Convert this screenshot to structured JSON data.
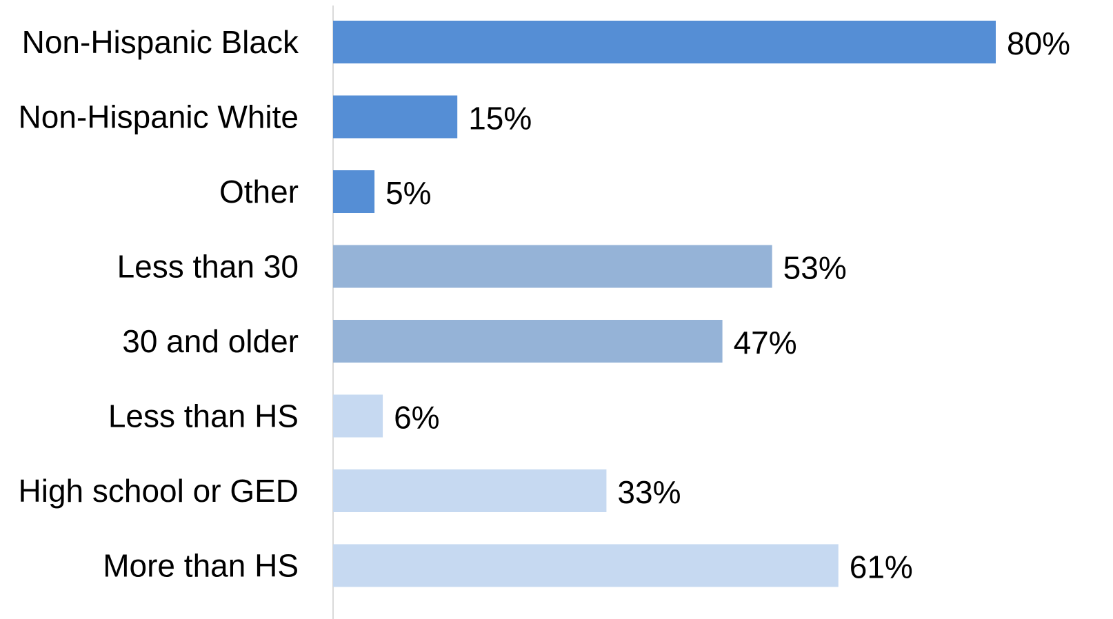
{
  "chart_data": {
    "type": "bar",
    "orientation": "horizontal",
    "categories": [
      "Non-Hispanic Black",
      "Non-Hispanic White",
      "Other",
      "Less than 30",
      "30 and older",
      "Less than HS",
      "High school or GED",
      "More than HS"
    ],
    "values": [
      80,
      15,
      5,
      53,
      47,
      6,
      33,
      61
    ],
    "value_labels": [
      "80%",
      "15%",
      "5%",
      "53%",
      "47%",
      "6%",
      "33%",
      "61%"
    ],
    "groups": [
      {
        "categories": [
          "Non-Hispanic Black",
          "Non-Hispanic White",
          "Other"
        ],
        "color": "#558ed5"
      },
      {
        "categories": [
          "Less than 30",
          "30 and older"
        ],
        "color": "#95b3d7"
      },
      {
        "categories": [
          "Less than HS",
          "High school or GED",
          "More than HS"
        ],
        "color": "#c6d9f1"
      }
    ],
    "xlim": [
      0,
      80
    ],
    "grid": false,
    "legend": "none",
    "title": "",
    "xlabel": "",
    "ylabel": ""
  }
}
